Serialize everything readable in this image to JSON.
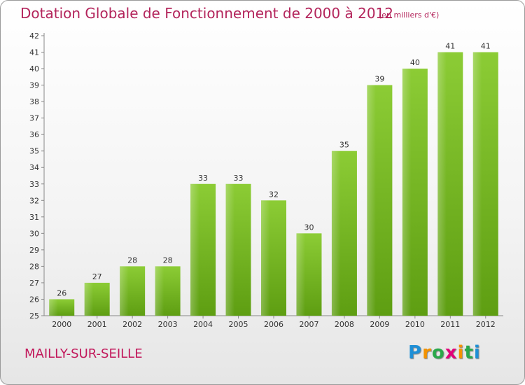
{
  "chart_data": {
    "type": "bar",
    "title": "Dotation Globale de Fonctionnement de 2000 à 2012",
    "subtitle": "(en milliers d'€)",
    "categories": [
      "2000",
      "2001",
      "2002",
      "2003",
      "2004",
      "2005",
      "2006",
      "2007",
      "2008",
      "2009",
      "2010",
      "2011",
      "2012"
    ],
    "values": [
      26,
      27,
      28,
      28,
      33,
      33,
      32,
      30,
      35,
      39,
      40,
      41,
      41
    ],
    "ylim": [
      25,
      42
    ],
    "yticks": [
      25,
      26,
      27,
      28,
      29,
      30,
      31,
      32,
      33,
      34,
      35,
      36,
      37,
      38,
      39,
      40,
      41,
      42
    ],
    "grid": false,
    "bar_color": "#7cbf2a"
  },
  "commune": "MAILLY-SUR-SEILLE",
  "logo": {
    "letters": [
      "P",
      "r",
      "o",
      "x",
      "i",
      "t",
      "i"
    ],
    "colors": [
      "#1e8fd6",
      "#f39200",
      "#2aa84a",
      "#e2007a",
      "#f39200",
      "#2aa84a",
      "#1e8fd6"
    ]
  }
}
